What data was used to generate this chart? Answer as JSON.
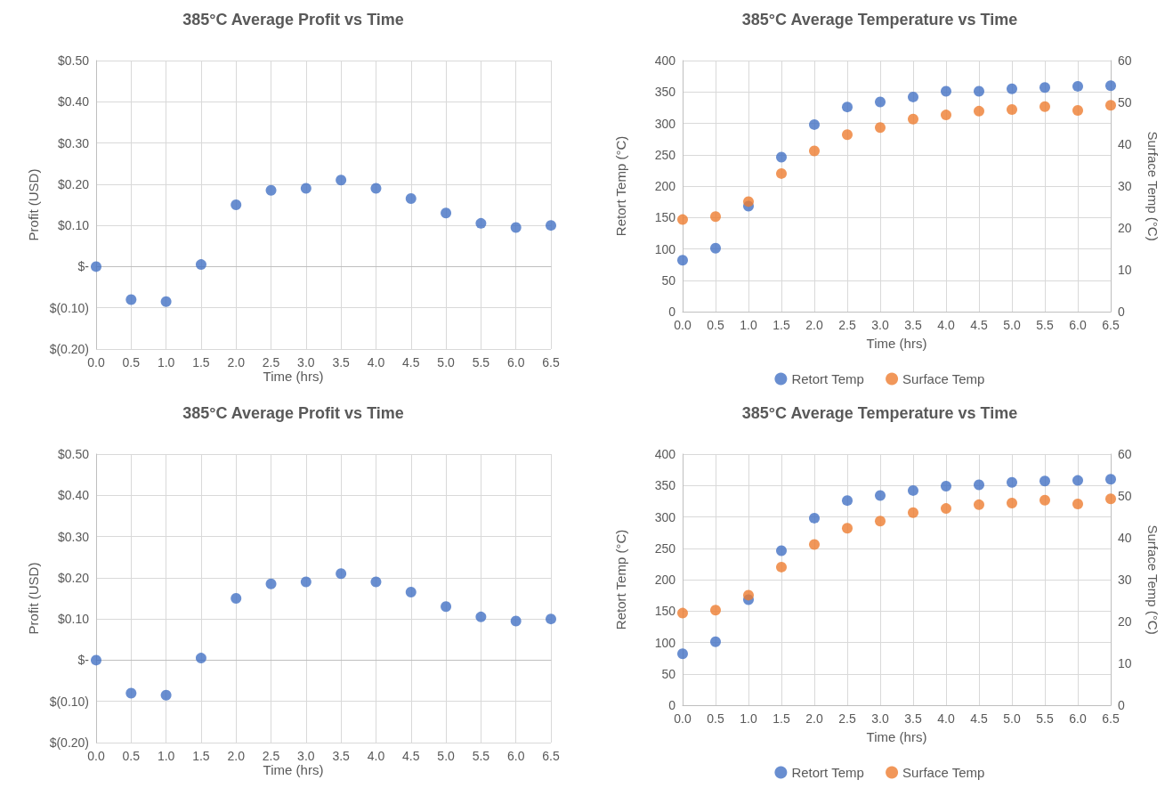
{
  "chart_data": [
    {
      "type": "scatter",
      "title": "385°C Average Profit vs Time",
      "xlabel": "Time (hrs)",
      "ylabel": "Profit (USD)",
      "x": [
        0,
        0.5,
        1,
        1.5,
        2,
        2.5,
        3,
        3.5,
        4,
        4.5,
        5,
        5.5,
        6,
        6.5
      ],
      "series": [
        {
          "color": "#4472c4",
          "values": [
            0,
            -0.08,
            -0.085,
            0.005,
            0.15,
            0.185,
            0.19,
            0.21,
            0.19,
            0.165,
            0.13,
            0.105,
            0.095,
            0.1
          ]
        }
      ],
      "xlim": [
        0,
        6.5
      ],
      "xticks": [
        {
          "value": 0,
          "label": "0.0"
        },
        {
          "value": 0.5,
          "label": "0.5"
        },
        {
          "value": 1,
          "label": "1.0"
        },
        {
          "value": 1.5,
          "label": "1.5"
        },
        {
          "value": 2,
          "label": "2.0"
        },
        {
          "value": 2.5,
          "label": "2.5"
        },
        {
          "value": 3,
          "label": "3.0"
        },
        {
          "value": 3.5,
          "label": "3.5"
        },
        {
          "value": 4,
          "label": "4.0"
        },
        {
          "value": 4.5,
          "label": "4.5"
        },
        {
          "value": 5,
          "label": "5.0"
        },
        {
          "value": 5.5,
          "label": "5.5"
        },
        {
          "value": 6,
          "label": "6.0"
        },
        {
          "value": 6.5,
          "label": "6.5"
        }
      ],
      "ylim": [
        -0.2,
        0.5
      ],
      "yticks": [
        {
          "value": -0.2,
          "label": "$(0.20)"
        },
        {
          "value": -0.1,
          "label": "$(0.10)"
        },
        {
          "value": 0,
          "label": "$-"
        },
        {
          "value": 0.1,
          "label": "$0.10"
        },
        {
          "value": 0.2,
          "label": "$0.20"
        },
        {
          "value": 0.3,
          "label": "$0.30"
        },
        {
          "value": 0.4,
          "label": "$0.40"
        },
        {
          "value": 0.5,
          "label": "$0.50"
        }
      ],
      "grid": true,
      "marker": "circle"
    },
    {
      "type": "scatter",
      "title": "385°C Average Temperature vs Time",
      "xlabel": "Time (hrs)",
      "ylabel": "Retort Temp (°C)",
      "y2label": "Surface Temp (°C)",
      "x": [
        0,
        0.5,
        1,
        1.5,
        2,
        2.5,
        3,
        3.5,
        4,
        4.5,
        5,
        5.5,
        6,
        6.5
      ],
      "series": [
        {
          "name": "Retort Temp",
          "color": "#4472c4",
          "values": [
            82,
            101,
            168,
            246,
            298,
            326,
            334,
            342,
            351,
            351,
            355,
            357,
            359,
            360
          ]
        },
        {
          "name": "Surface Temp",
          "color": "#ed7d31",
          "axis": "y2",
          "values": [
            22,
            22.7,
            26.3,
            33,
            38.4,
            42.3,
            44,
            46,
            47,
            47.9,
            48.3,
            49,
            48.1,
            49.3
          ]
        }
      ],
      "xlim": [
        0,
        6.5
      ],
      "xticks": [
        {
          "value": 0,
          "label": "0.0"
        },
        {
          "value": 0.5,
          "label": "0.5"
        },
        {
          "value": 1,
          "label": "1.0"
        },
        {
          "value": 1.5,
          "label": "1.5"
        },
        {
          "value": 2,
          "label": "2.0"
        },
        {
          "value": 2.5,
          "label": "2.5"
        },
        {
          "value": 3,
          "label": "3.0"
        },
        {
          "value": 3.5,
          "label": "3.5"
        },
        {
          "value": 4,
          "label": "4.0"
        },
        {
          "value": 4.5,
          "label": "4.5"
        },
        {
          "value": 5,
          "label": "5.0"
        },
        {
          "value": 5.5,
          "label": "5.5"
        },
        {
          "value": 6,
          "label": "6.0"
        },
        {
          "value": 6.5,
          "label": "6.5"
        }
      ],
      "ylim": [
        0,
        400
      ],
      "yticks": [
        0,
        50,
        100,
        150,
        200,
        250,
        300,
        350,
        400
      ],
      "y2lim": [
        0,
        60
      ],
      "y2ticks": [
        0,
        10,
        20,
        30,
        40,
        50,
        60
      ],
      "grid": true,
      "legend": "bottom",
      "marker": "circle"
    },
    {
      "type": "scatter",
      "title": "385°C Average Profit vs Time",
      "xlabel": "Time (hrs)",
      "ylabel": "Profit (USD)",
      "x": [
        0,
        0.5,
        1,
        1.5,
        2,
        2.5,
        3,
        3.5,
        4,
        4.5,
        5,
        5.5,
        6,
        6.5
      ],
      "series": [
        {
          "color": "#4472c4",
          "values": [
            0,
            -0.08,
            -0.085,
            0.005,
            0.15,
            0.185,
            0.19,
            0.21,
            0.19,
            0.165,
            0.13,
            0.105,
            0.095,
            0.1
          ]
        }
      ],
      "xlim": [
        0,
        6.5
      ],
      "xticks": [
        {
          "value": 0,
          "label": "0.0"
        },
        {
          "value": 0.5,
          "label": "0.5"
        },
        {
          "value": 1,
          "label": "1.0"
        },
        {
          "value": 1.5,
          "label": "1.5"
        },
        {
          "value": 2,
          "label": "2.0"
        },
        {
          "value": 2.5,
          "label": "2.5"
        },
        {
          "value": 3,
          "label": "3.0"
        },
        {
          "value": 3.5,
          "label": "3.5"
        },
        {
          "value": 4,
          "label": "4.0"
        },
        {
          "value": 4.5,
          "label": "4.5"
        },
        {
          "value": 5,
          "label": "5.0"
        },
        {
          "value": 5.5,
          "label": "5.5"
        },
        {
          "value": 6,
          "label": "6.0"
        },
        {
          "value": 6.5,
          "label": "6.5"
        }
      ],
      "ylim": [
        -0.2,
        0.5
      ],
      "yticks": [
        {
          "value": -0.2,
          "label": "$(0.20)"
        },
        {
          "value": -0.1,
          "label": "$(0.10)"
        },
        {
          "value": 0,
          "label": "$-"
        },
        {
          "value": 0.1,
          "label": "$0.10"
        },
        {
          "value": 0.2,
          "label": "$0.20"
        },
        {
          "value": 0.3,
          "label": "$0.30"
        },
        {
          "value": 0.4,
          "label": "$0.40"
        },
        {
          "value": 0.5,
          "label": "$0.50"
        }
      ],
      "grid": true,
      "marker": "circle"
    },
    {
      "type": "scatter",
      "title": "385°C Average Temperature vs Time",
      "xlabel": "Time (hrs)",
      "ylabel": "Retort Temp (°C)",
      "y2label": "Surface Temp (°C)",
      "x": [
        0,
        0.5,
        1,
        1.5,
        2,
        2.5,
        3,
        3.5,
        4,
        4.5,
        5,
        5.5,
        6,
        6.5
      ],
      "series": [
        {
          "name": "Retort Temp",
          "color": "#4472c4",
          "values": [
            82,
            101,
            168,
            246,
            298,
            326,
            334,
            342,
            349,
            351,
            355,
            357,
            358,
            360
          ]
        },
        {
          "name": "Surface Temp",
          "color": "#ed7d31",
          "axis": "y2",
          "values": [
            22,
            22.7,
            26.3,
            33,
            38.4,
            42.3,
            44,
            46,
            47,
            47.9,
            48.3,
            49,
            48.1,
            49.3
          ]
        }
      ],
      "xlim": [
        0,
        6.5
      ],
      "xticks": [
        {
          "value": 0,
          "label": "0.0"
        },
        {
          "value": 0.5,
          "label": "0.5"
        },
        {
          "value": 1,
          "label": "1.0"
        },
        {
          "value": 1.5,
          "label": "1.5"
        },
        {
          "value": 2,
          "label": "2.0"
        },
        {
          "value": 2.5,
          "label": "2.5"
        },
        {
          "value": 3,
          "label": "3.0"
        },
        {
          "value": 3.5,
          "label": "3.5"
        },
        {
          "value": 4,
          "label": "4.0"
        },
        {
          "value": 4.5,
          "label": "4.5"
        },
        {
          "value": 5,
          "label": "5.0"
        },
        {
          "value": 5.5,
          "label": "5.5"
        },
        {
          "value": 6,
          "label": "6.0"
        },
        {
          "value": 6.5,
          "label": "6.5"
        }
      ],
      "ylim": [
        0,
        400
      ],
      "yticks": [
        0,
        50,
        100,
        150,
        200,
        250,
        300,
        350,
        400
      ],
      "y2lim": [
        0,
        60
      ],
      "y2ticks": [
        0,
        10,
        20,
        30,
        40,
        50,
        60
      ],
      "grid": true,
      "legend": "bottom",
      "marker": "circle"
    }
  ]
}
